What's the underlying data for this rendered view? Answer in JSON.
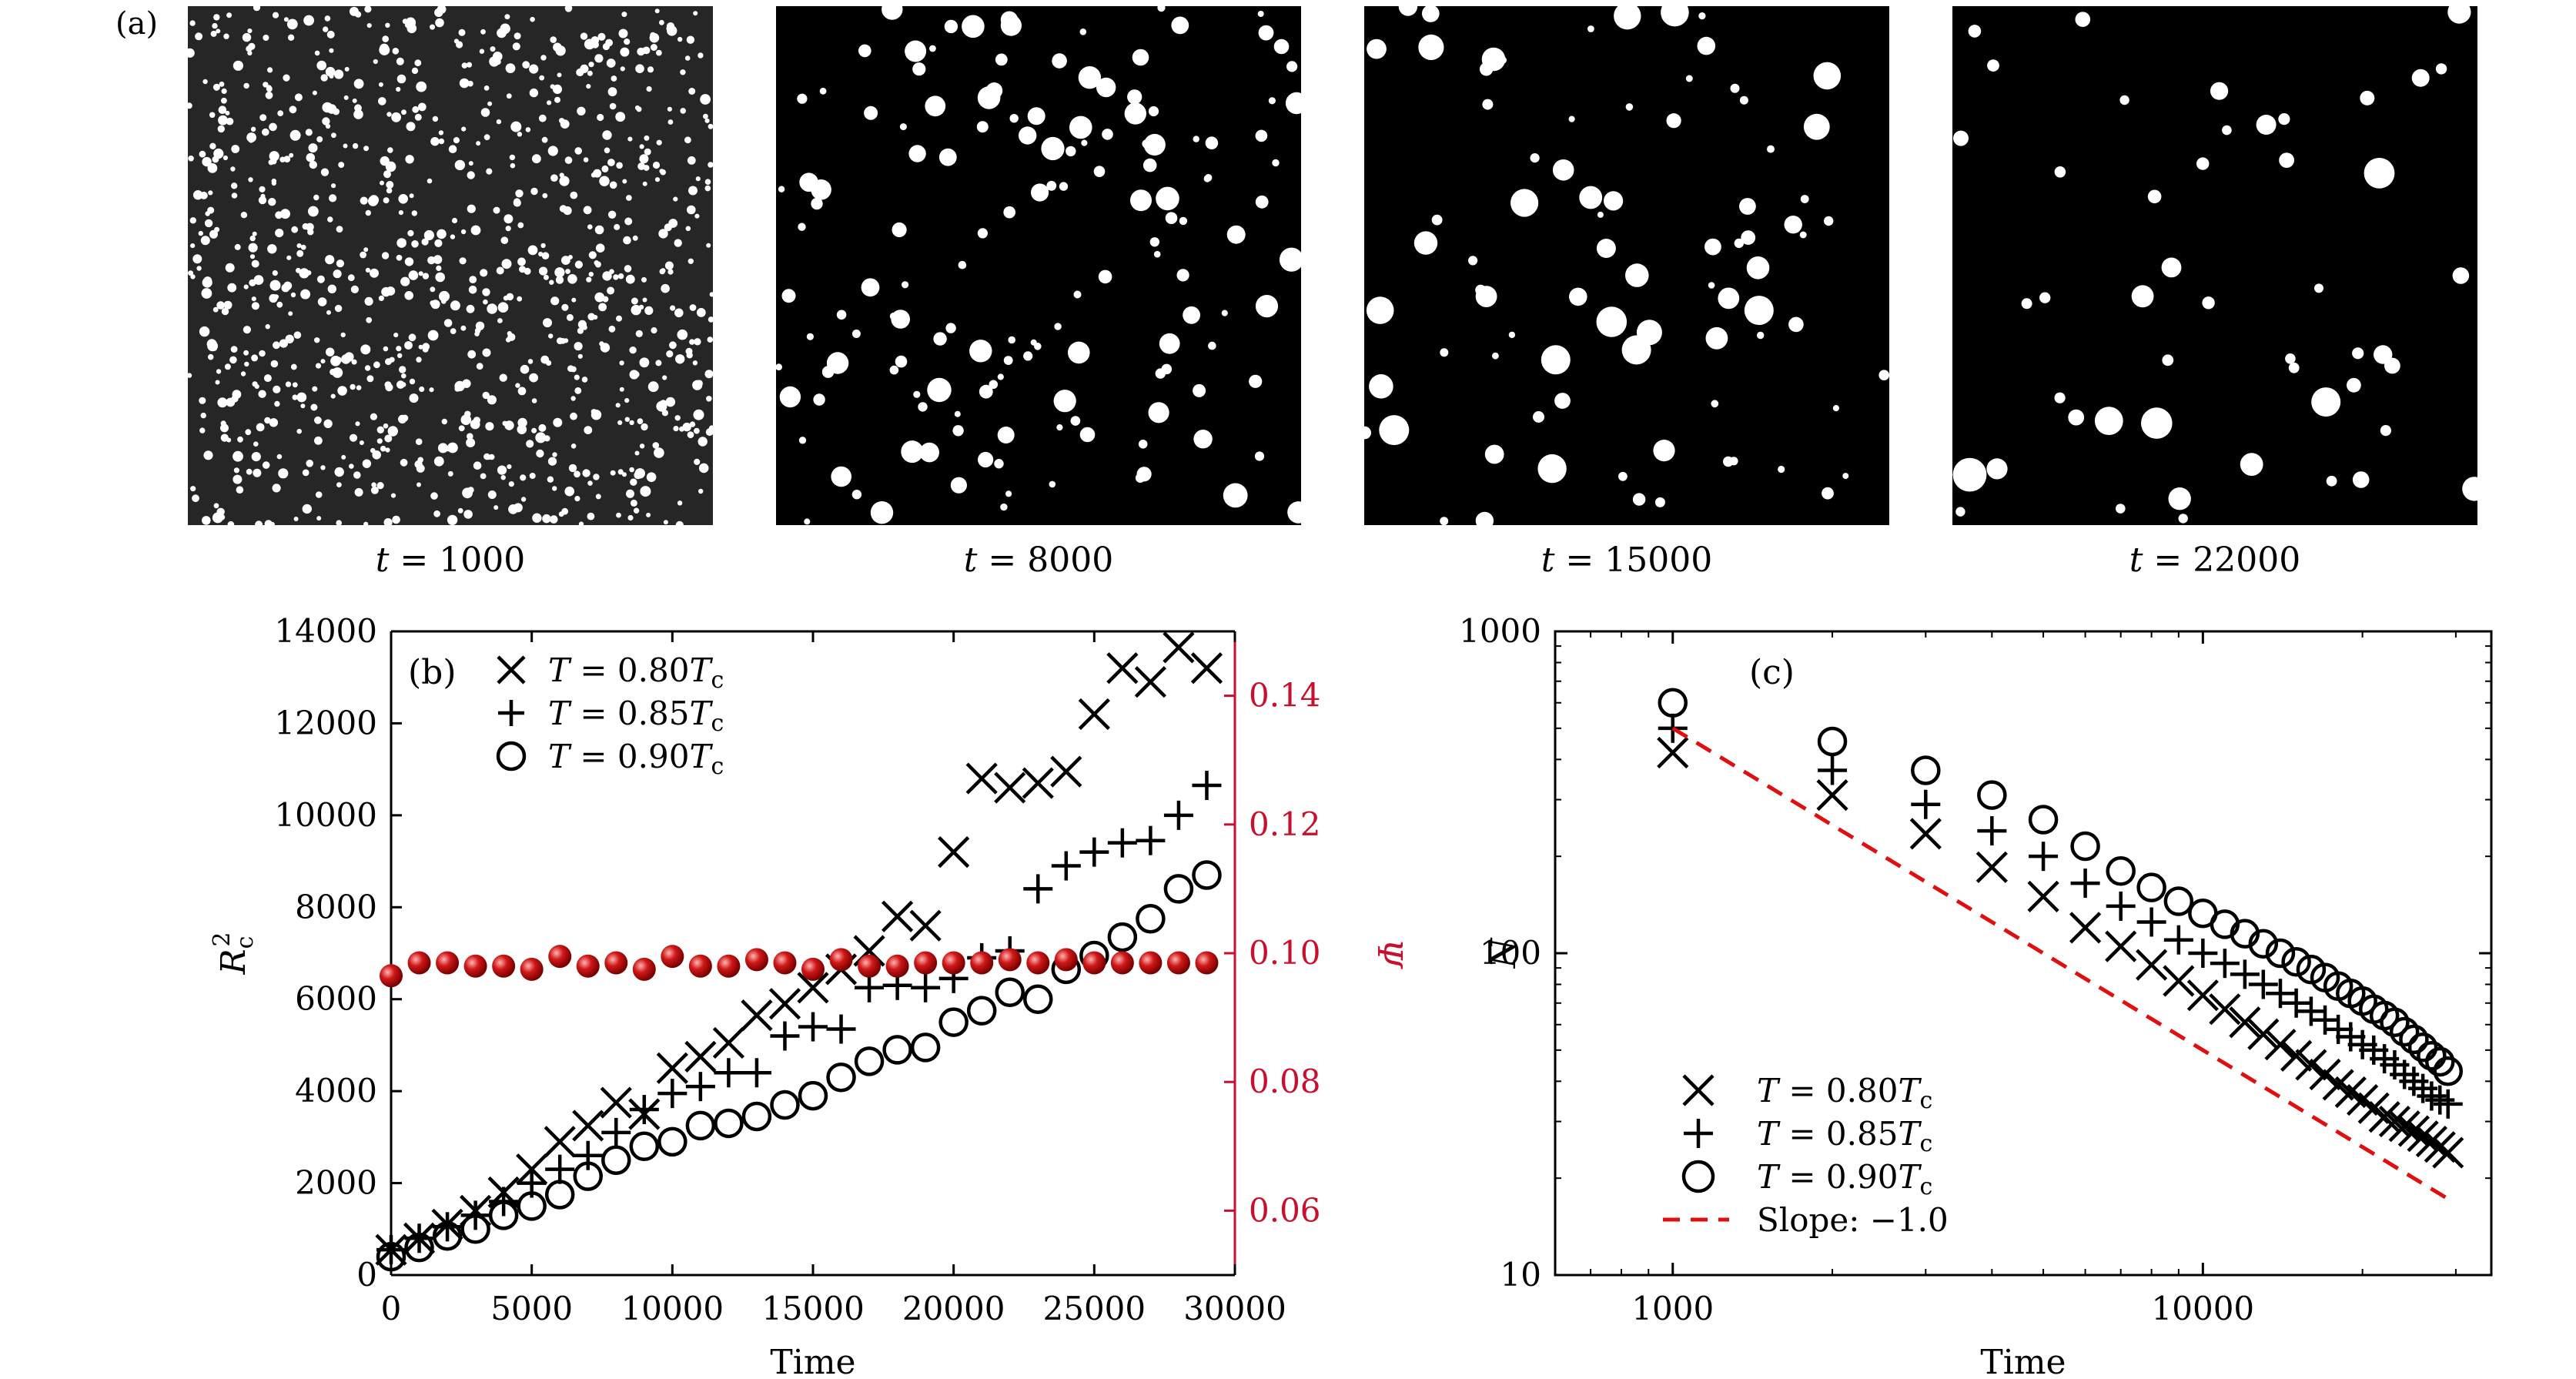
{
  "figure": {
    "panel_a_tag": "(a)",
    "snapshots": [
      {
        "label": "t = 1000",
        "t": "1000"
      },
      {
        "label": "t = 8000",
        "t": "8000"
      },
      {
        "label": "t = 15000",
        "t": "15000"
      },
      {
        "label": "t = 22000",
        "t": "22000"
      }
    ]
  },
  "chart_data": [
    {
      "type": "scatter",
      "panel_label": "(b)",
      "xlabel": "Time",
      "ylabel": "R_c^2",
      "ylabel_right": "Ψ",
      "xlim": [
        0,
        30000
      ],
      "ylim": [
        0,
        14000
      ],
      "ylim_right": [
        0.05,
        0.15
      ],
      "xticks": [
        0,
        5000,
        10000,
        15000,
        20000,
        25000,
        30000
      ],
      "yticks": [
        0,
        2000,
        4000,
        6000,
        8000,
        10000,
        12000,
        14000
      ],
      "yticks_right": [
        0.06,
        0.08,
        0.1,
        0.12,
        0.14
      ],
      "right_axis_color": "#c8102e",
      "legend_position": "top-left",
      "series": [
        {
          "name": "T = 0.80Tc",
          "marker": "x",
          "axis": "left",
          "x": [
            0,
            1000,
            2000,
            3000,
            4000,
            5000,
            6000,
            7000,
            8000,
            9000,
            10000,
            11000,
            12000,
            13000,
            14000,
            15000,
            16000,
            17000,
            18000,
            19000,
            20000,
            21000,
            22000,
            23000,
            24000,
            25000,
            26000,
            27000,
            28000,
            29000
          ],
          "values": [
            550,
            800,
            1100,
            1400,
            1800,
            2300,
            2900,
            3250,
            3750,
            3500,
            4500,
            4750,
            5050,
            5650,
            5900,
            6250,
            6650,
            7050,
            7800,
            7600,
            9200,
            10800,
            10600,
            10700,
            10950,
            12200,
            13200,
            12900,
            13650,
            13200
          ]
        },
        {
          "name": "T = 0.85Tc",
          "marker": "+",
          "axis": "left",
          "x": [
            0,
            1000,
            2000,
            3000,
            4000,
            5000,
            6000,
            7000,
            8000,
            9000,
            10000,
            11000,
            12000,
            13000,
            14000,
            15000,
            16000,
            17000,
            18000,
            19000,
            20000,
            21000,
            22000,
            23000,
            24000,
            25000,
            26000,
            27000,
            28000,
            29000
          ],
          "values": [
            550,
            800,
            1050,
            1300,
            1600,
            2000,
            2300,
            2600,
            3100,
            3600,
            3950,
            4100,
            4400,
            4400,
            5200,
            5400,
            5350,
            6250,
            6300,
            6250,
            6450,
            6900,
            7050,
            8400,
            8900,
            9200,
            9400,
            9450,
            10000,
            10650
          ]
        },
        {
          "name": "T = 0.90Tc",
          "marker": "o",
          "axis": "left",
          "x": [
            0,
            1000,
            2000,
            3000,
            4000,
            5000,
            6000,
            7000,
            8000,
            9000,
            10000,
            11000,
            12000,
            13000,
            14000,
            15000,
            16000,
            17000,
            18000,
            19000,
            20000,
            21000,
            22000,
            23000,
            24000,
            25000,
            26000,
            27000,
            28000,
            29000
          ],
          "values": [
            400,
            600,
            850,
            1000,
            1300,
            1500,
            1750,
            2150,
            2500,
            2800,
            2900,
            3250,
            3300,
            3450,
            3700,
            3900,
            4300,
            4650,
            4900,
            4950,
            5500,
            5750,
            6150,
            6000,
            6650,
            6950,
            7350,
            7750,
            8400,
            8700
          ]
        },
        {
          "name": "Ψ",
          "marker": "sphere",
          "axis": "right",
          "color": "#c8102e",
          "x": [
            0,
            1000,
            2000,
            3000,
            4000,
            5000,
            6000,
            7000,
            8000,
            9000,
            10000,
            11000,
            12000,
            13000,
            14000,
            15000,
            16000,
            17000,
            18000,
            19000,
            20000,
            21000,
            22000,
            23000,
            24000,
            25000,
            26000,
            27000,
            28000,
            29000
          ],
          "values": [
            0.0965,
            0.0985,
            0.0985,
            0.098,
            0.098,
            0.0975,
            0.0995,
            0.098,
            0.0985,
            0.0975,
            0.0995,
            0.098,
            0.098,
            0.099,
            0.0985,
            0.0975,
            0.099,
            0.098,
            0.098,
            0.0985,
            0.0985,
            0.0985,
            0.099,
            0.0985,
            0.099,
            0.0985,
            0.0985,
            0.0985,
            0.0985,
            0.0985
          ]
        }
      ]
    },
    {
      "type": "scatter",
      "panel_label": "(c)",
      "xlabel": "Time",
      "ylabel": "N",
      "xscale": "log",
      "yscale": "log",
      "xlim": [
        600,
        35000
      ],
      "ylim": [
        10,
        1000
      ],
      "xtick_labels": [
        "1000",
        "10000"
      ],
      "ytick_labels": [
        "10",
        "100",
        "1000"
      ],
      "legend_position": "bottom-left",
      "series": [
        {
          "name": "T = 0.80Tc",
          "marker": "x",
          "x": [
            1000,
            2000,
            3000,
            4000,
            5000,
            6000,
            7000,
            8000,
            9000,
            10000,
            11000,
            12000,
            13000,
            14000,
            15000,
            16000,
            17000,
            18000,
            19000,
            20000,
            21000,
            22000,
            23000,
            24000,
            25000,
            26000,
            27000,
            28000,
            29000
          ],
          "values": [
            420,
            310,
            235,
            185,
            150,
            120,
            105,
            92,
            82,
            74,
            67,
            61,
            56,
            52,
            48,
            45,
            42,
            39,
            37,
            35,
            33,
            31,
            30,
            29,
            28,
            27,
            26,
            25,
            24
          ]
        },
        {
          "name": "T = 0.85Tc",
          "marker": "+",
          "x": [
            1000,
            2000,
            3000,
            4000,
            5000,
            6000,
            7000,
            8000,
            9000,
            10000,
            11000,
            12000,
            13000,
            14000,
            15000,
            16000,
            17000,
            18000,
            19000,
            20000,
            21000,
            22000,
            23000,
            24000,
            25000,
            26000,
            27000,
            28000,
            29000
          ],
          "values": [
            500,
            370,
            290,
            240,
            200,
            165,
            140,
            125,
            110,
            100,
            93,
            86,
            80,
            75,
            70,
            66,
            62,
            58,
            55,
            52,
            50,
            47,
            45,
            42,
            40,
            38,
            36,
            35,
            34
          ]
        },
        {
          "name": "T = 0.90Tc",
          "marker": "o",
          "x": [
            1000,
            2000,
            3000,
            4000,
            5000,
            6000,
            7000,
            8000,
            9000,
            10000,
            11000,
            12000,
            13000,
            14000,
            15000,
            16000,
            17000,
            18000,
            19000,
            20000,
            21000,
            22000,
            23000,
            24000,
            25000,
            26000,
            27000,
            28000,
            29000
          ],
          "values": [
            600,
            455,
            370,
            310,
            260,
            215,
            180,
            160,
            145,
            133,
            123,
            115,
            107,
            100,
            94,
            89,
            84,
            79,
            75,
            71,
            67,
            64,
            61,
            57,
            54,
            51,
            48,
            46,
            43
          ]
        },
        {
          "name": "Slope: −1.0",
          "marker": "dashed-line",
          "color": "#e01010",
          "x": [
            1000,
            29000
          ],
          "values": [
            500,
            17.24
          ]
        }
      ]
    }
  ]
}
